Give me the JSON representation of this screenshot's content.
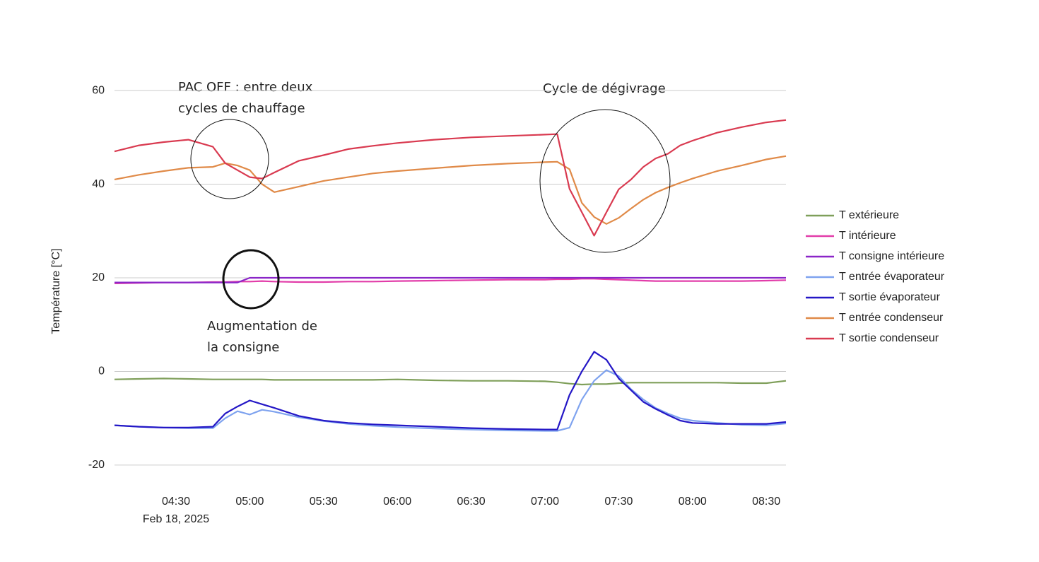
{
  "chart_data": {
    "type": "line",
    "y_label": "Température [°C]",
    "date_label": "Feb 18, 2025",
    "x": [
      "04:05",
      "04:15",
      "04:25",
      "04:35",
      "04:45",
      "04:50",
      "04:55",
      "05:00",
      "05:05",
      "05:10",
      "05:20",
      "05:30",
      "05:40",
      "05:50",
      "06:00",
      "06:15",
      "06:30",
      "06:45",
      "07:00",
      "07:05",
      "07:10",
      "07:15",
      "07:20",
      "07:25",
      "07:30",
      "07:35",
      "07:40",
      "07:45",
      "07:50",
      "07:55",
      "08:00",
      "08:10",
      "08:20",
      "08:30",
      "08:38"
    ],
    "xlim": [
      "04:05",
      "08:38"
    ],
    "xticks": [
      "04:30",
      "05:00",
      "05:30",
      "06:00",
      "06:30",
      "07:00",
      "07:30",
      "08:00",
      "08:30"
    ],
    "ylim": [
      -25,
      65
    ],
    "yticks": [
      -20,
      0,
      20,
      40,
      60
    ],
    "grid": true,
    "legend": "right",
    "series": [
      {
        "name": "T extérieure",
        "color": "#7f9f5a",
        "values": [
          -1.7,
          -1.6,
          -1.5,
          -1.6,
          -1.7,
          -1.7,
          -1.7,
          -1.7,
          -1.7,
          -1.8,
          -1.8,
          -1.8,
          -1.8,
          -1.8,
          -1.7,
          -1.9,
          -2,
          -2,
          -2.1,
          -2.3,
          -2.6,
          -2.8,
          -2.7,
          -2.7,
          -2.5,
          -2.4,
          -2.4,
          -2.4,
          -2.4,
          -2.4,
          -2.4,
          -2.4,
          -2.5,
          -2.5,
          -2.0
        ]
      },
      {
        "name": "T intérieure",
        "color": "#e23da9",
        "values": [
          18.8,
          18.9,
          19,
          19,
          19.1,
          19.1,
          19.2,
          19.2,
          19.3,
          19.2,
          19.1,
          19.1,
          19.2,
          19.2,
          19.3,
          19.4,
          19.5,
          19.6,
          19.6,
          19.7,
          19.7,
          19.8,
          19.8,
          19.7,
          19.6,
          19.5,
          19.4,
          19.3,
          19.3,
          19.3,
          19.3,
          19.3,
          19.3,
          19.4,
          19.5
        ]
      },
      {
        "name": "T consigne intérieure",
        "color": "#8b25c8",
        "values": [
          19,
          19,
          19,
          19,
          19,
          19,
          19,
          20,
          20,
          20,
          20,
          20,
          20,
          20,
          20,
          20,
          20,
          20,
          20,
          20,
          20,
          20,
          20,
          20,
          20,
          20,
          20,
          20,
          20,
          20,
          20,
          20,
          20,
          20,
          20
        ]
      },
      {
        "name": "T entrée évaporateur",
        "color": "#7fa3ef",
        "values": [
          -11.5,
          -11.8,
          -12,
          -12.1,
          -12.1,
          -10,
          -8.5,
          -9.2,
          -8.2,
          -8.6,
          -9.8,
          -10.6,
          -11.2,
          -11.6,
          -11.9,
          -12.2,
          -12.4,
          -12.6,
          -12.7,
          -12.7,
          -12,
          -6,
          -2,
          0.3,
          -1,
          -3.8,
          -6,
          -7.8,
          -9,
          -10,
          -10.5,
          -11,
          -11.4,
          -11.5,
          -11.1
        ]
      },
      {
        "name": "T sortie évaporateur",
        "color": "#2417c6",
        "values": [
          -11.5,
          -11.8,
          -12,
          -12,
          -11.8,
          -9,
          -7.5,
          -6.2,
          -7,
          -7.8,
          -9.5,
          -10.5,
          -11,
          -11.3,
          -11.5,
          -11.8,
          -12.1,
          -12.3,
          -12.4,
          -12.4,
          -5,
          0,
          4.2,
          2.5,
          -1.5,
          -4,
          -6.5,
          -8,
          -9.3,
          -10.5,
          -11,
          -11.2,
          -11.2,
          -11.2,
          -10.8
        ]
      },
      {
        "name": "T entrée condenseur",
        "color": "#e08a48",
        "values": [
          41,
          42,
          42.8,
          43.5,
          43.7,
          44.5,
          44,
          43,
          40,
          38.3,
          39.5,
          40.7,
          41.5,
          42.3,
          42.8,
          43.4,
          44,
          44.4,
          44.7,
          44.8,
          43.2,
          36,
          33,
          31.5,
          32.8,
          34.8,
          36.7,
          38.2,
          39.3,
          40.3,
          41.2,
          42.8,
          44,
          45.3,
          46
        ]
      },
      {
        "name": "T sortie condenseur",
        "color": "#d93a50",
        "values": [
          47,
          48.3,
          49,
          49.5,
          48,
          44.5,
          43,
          41.5,
          41.2,
          42.5,
          45,
          46.2,
          47.5,
          48.2,
          48.8,
          49.5,
          50,
          50.3,
          50.6,
          50.7,
          39,
          34,
          29,
          34,
          38.9,
          41,
          43.7,
          45.5,
          46.5,
          48.3,
          49.3,
          51,
          52.2,
          53.2,
          53.7
        ]
      }
    ],
    "annotations": [
      {
        "text": [
          "PAC OFF : entre deux",
          "cycles de chauffage"
        ]
      },
      {
        "text": [
          "Cycle de dégivrage"
        ]
      },
      {
        "text": [
          "Augmentation de",
          "la consigne"
        ]
      }
    ]
  }
}
